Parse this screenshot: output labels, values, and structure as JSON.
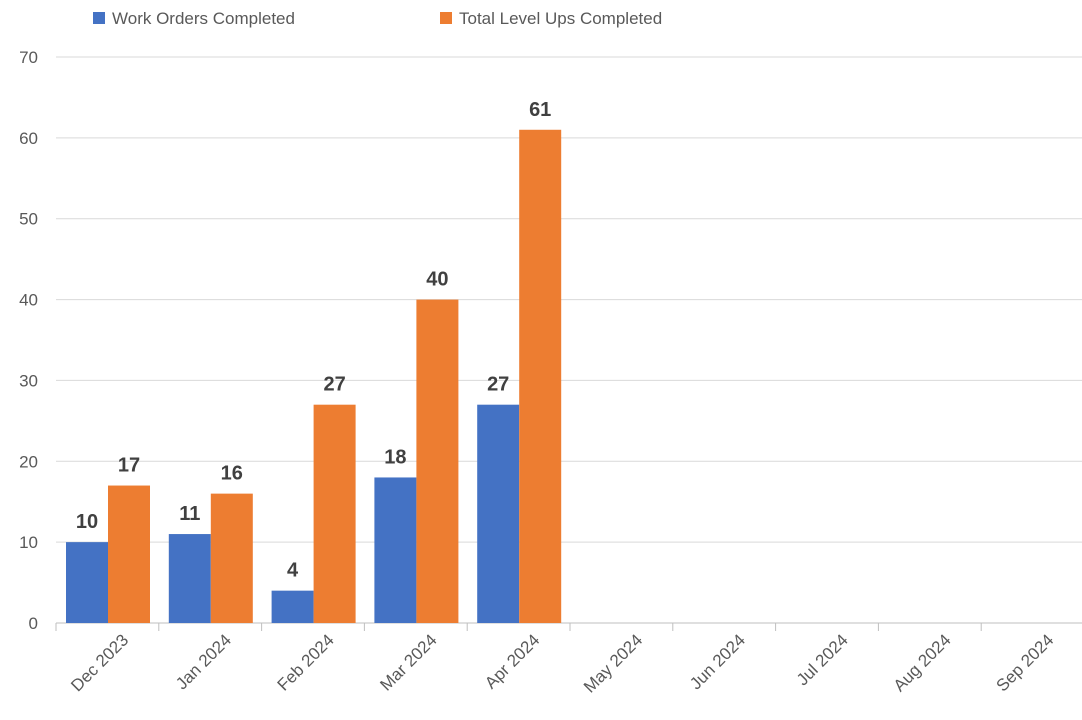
{
  "chart_data": {
    "type": "bar",
    "title": "",
    "xlabel": "",
    "ylabel": "",
    "categories": [
      "Dec 2023",
      "Jan 2024",
      "Feb 2024",
      "Mar 2024",
      "Apr 2024",
      "May 2024",
      "Jun 2024",
      "Jul 2024",
      "Aug 2024",
      "Sep 2024"
    ],
    "series": [
      {
        "name": "Work Orders Completed",
        "color": "#4472C4",
        "values": [
          10,
          11,
          4,
          18,
          27,
          null,
          null,
          null,
          null,
          null
        ]
      },
      {
        "name": "Total Level Ups Completed",
        "color": "#ED7D31",
        "values": [
          17,
          16,
          27,
          40,
          61,
          null,
          null,
          null,
          null,
          null
        ]
      }
    ],
    "ylim": [
      0,
      70
    ],
    "yticks": [
      0,
      10,
      20,
      30,
      40,
      50,
      60,
      70
    ],
    "grid": true,
    "legend_position": "top-left",
    "data_labels": true
  }
}
